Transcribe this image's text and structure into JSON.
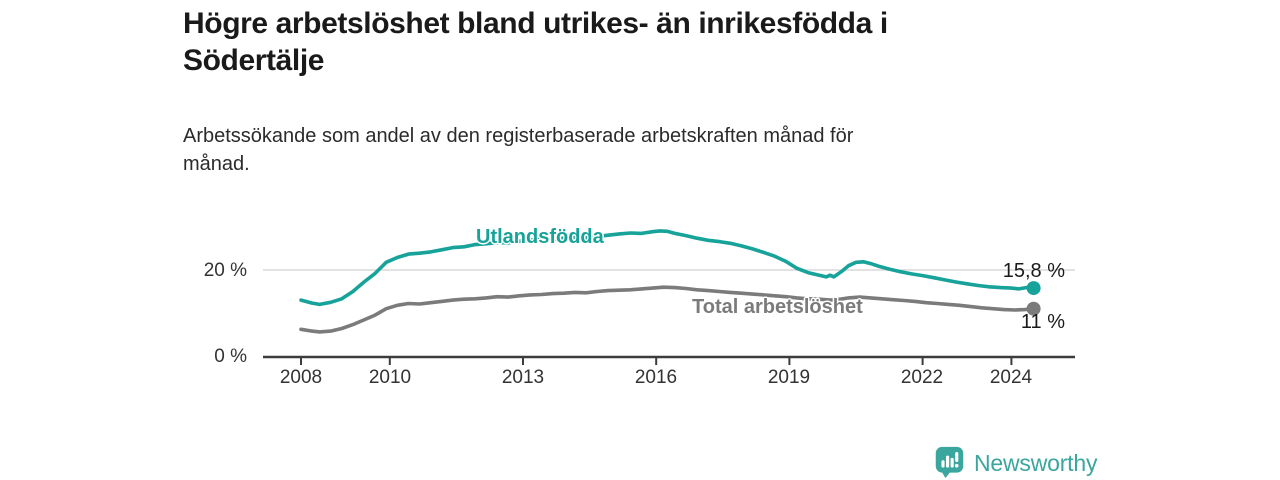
{
  "meta": {
    "background_color": "#ffffff",
    "text_color": "#1a1a1a"
  },
  "header": {
    "title_lines": [
      "Högre arbetslöshet bland utrikes- än inrikesfödda i",
      "Södertälje"
    ],
    "subtitle_lines": [
      "Arbetssökande som andel av den registerbaserade arbetskraften månad för",
      "månad."
    ]
  },
  "chart_data": {
    "type": "line",
    "title": "Högre arbetslöshet bland utrikes- än inrikesfödda i Södertälje",
    "subtitle": "Arbetssökande som andel av den registerbaserade arbetskraften månad för månad.",
    "unit": "%",
    "grid": "single horizontal gridline at 20 %",
    "legend_position": "inline labels on lines, value labels at line ends",
    "x_axis": {
      "min": 2007.15,
      "max": 2025.4
    },
    "y_axis": {
      "min": 0,
      "max": 30
    },
    "x_ticks": [
      {
        "label": "2008",
        "year": 2008
      },
      {
        "label": "2010",
        "year": 2010
      },
      {
        "label": "2013",
        "year": 2013
      },
      {
        "label": "2016",
        "year": 2016
      },
      {
        "label": "2019",
        "year": 2019
      },
      {
        "label": "2022",
        "year": 2022
      },
      {
        "label": "2024",
        "year": 2024
      }
    ],
    "y_ticks": [
      {
        "label": "20 %",
        "value": 20
      },
      {
        "label": "0 %",
        "value": 0
      }
    ],
    "series": [
      {
        "name": "Utlandsfödda",
        "color": "#17a29a",
        "end_label": "15,8 %",
        "end_value": 15.8,
        "points": [
          [
            2008.0,
            13.0
          ],
          [
            2008.25,
            12.3
          ],
          [
            2008.42,
            12.0
          ],
          [
            2008.67,
            12.5
          ],
          [
            2008.92,
            13.3
          ],
          [
            2009.17,
            15.0
          ],
          [
            2009.42,
            17.2
          ],
          [
            2009.67,
            19.2
          ],
          [
            2009.92,
            21.8
          ],
          [
            2010.17,
            22.9
          ],
          [
            2010.42,
            23.7
          ],
          [
            2010.67,
            23.9
          ],
          [
            2010.92,
            24.2
          ],
          [
            2011.17,
            24.7
          ],
          [
            2011.42,
            25.2
          ],
          [
            2011.67,
            25.4
          ],
          [
            2011.92,
            25.9
          ],
          [
            2012.17,
            26.1
          ],
          [
            2012.42,
            26.4
          ],
          [
            2012.67,
            26.3
          ],
          [
            2012.92,
            26.7
          ],
          [
            2013.17,
            27.0
          ],
          [
            2013.42,
            27.2
          ],
          [
            2013.67,
            27.1
          ],
          [
            2013.92,
            27.4
          ],
          [
            2014.17,
            27.6
          ],
          [
            2014.42,
            27.5
          ],
          [
            2014.67,
            27.8
          ],
          [
            2014.92,
            28.1
          ],
          [
            2015.17,
            28.4
          ],
          [
            2015.42,
            28.6
          ],
          [
            2015.67,
            28.5
          ],
          [
            2015.92,
            28.9
          ],
          [
            2016.08,
            29.1
          ],
          [
            2016.25,
            29.0
          ],
          [
            2016.42,
            28.5
          ],
          [
            2016.67,
            28.0
          ],
          [
            2016.92,
            27.4
          ],
          [
            2017.17,
            26.9
          ],
          [
            2017.42,
            26.6
          ],
          [
            2017.67,
            26.2
          ],
          [
            2017.92,
            25.6
          ],
          [
            2018.17,
            24.9
          ],
          [
            2018.42,
            24.1
          ],
          [
            2018.67,
            23.2
          ],
          [
            2018.92,
            22.0
          ],
          [
            2019.17,
            20.4
          ],
          [
            2019.42,
            19.4
          ],
          [
            2019.67,
            18.8
          ],
          [
            2019.83,
            18.4
          ],
          [
            2019.92,
            18.8
          ],
          [
            2020.0,
            18.4
          ],
          [
            2020.17,
            19.6
          ],
          [
            2020.33,
            21.0
          ],
          [
            2020.5,
            21.8
          ],
          [
            2020.67,
            21.9
          ],
          [
            2020.83,
            21.5
          ],
          [
            2021.0,
            20.9
          ],
          [
            2021.25,
            20.2
          ],
          [
            2021.5,
            19.6
          ],
          [
            2021.75,
            19.1
          ],
          [
            2022.0,
            18.7
          ],
          [
            2022.25,
            18.2
          ],
          [
            2022.5,
            17.7
          ],
          [
            2022.75,
            17.2
          ],
          [
            2023.0,
            16.8
          ],
          [
            2023.25,
            16.4
          ],
          [
            2023.5,
            16.1
          ],
          [
            2023.75,
            15.9
          ],
          [
            2024.0,
            15.8
          ],
          [
            2024.17,
            15.6
          ],
          [
            2024.33,
            15.9
          ],
          [
            2024.5,
            15.8
          ]
        ]
      },
      {
        "name": "Total arbetslöshet",
        "color": "#7b7b7b",
        "end_label": "11 %",
        "end_value": 11,
        "points": [
          [
            2008.0,
            6.2
          ],
          [
            2008.25,
            5.8
          ],
          [
            2008.42,
            5.6
          ],
          [
            2008.67,
            5.8
          ],
          [
            2008.92,
            6.4
          ],
          [
            2009.17,
            7.3
          ],
          [
            2009.42,
            8.4
          ],
          [
            2009.67,
            9.5
          ],
          [
            2009.92,
            11.0
          ],
          [
            2010.17,
            11.8
          ],
          [
            2010.42,
            12.2
          ],
          [
            2010.67,
            12.1
          ],
          [
            2010.92,
            12.4
          ],
          [
            2011.17,
            12.7
          ],
          [
            2011.42,
            13.0
          ],
          [
            2011.67,
            13.2
          ],
          [
            2011.92,
            13.3
          ],
          [
            2012.17,
            13.5
          ],
          [
            2012.42,
            13.8
          ],
          [
            2012.67,
            13.7
          ],
          [
            2012.92,
            14.0
          ],
          [
            2013.17,
            14.2
          ],
          [
            2013.42,
            14.3
          ],
          [
            2013.67,
            14.5
          ],
          [
            2013.92,
            14.6
          ],
          [
            2014.17,
            14.8
          ],
          [
            2014.42,
            14.7
          ],
          [
            2014.67,
            15.0
          ],
          [
            2014.92,
            15.2
          ],
          [
            2015.17,
            15.3
          ],
          [
            2015.42,
            15.4
          ],
          [
            2015.67,
            15.6
          ],
          [
            2015.92,
            15.8
          ],
          [
            2016.17,
            16.0
          ],
          [
            2016.42,
            15.9
          ],
          [
            2016.67,
            15.7
          ],
          [
            2016.92,
            15.4
          ],
          [
            2017.17,
            15.2
          ],
          [
            2017.42,
            15.0
          ],
          [
            2017.67,
            14.8
          ],
          [
            2017.92,
            14.6
          ],
          [
            2018.17,
            14.4
          ],
          [
            2018.42,
            14.2
          ],
          [
            2018.67,
            14.0
          ],
          [
            2018.92,
            13.8
          ],
          [
            2019.17,
            13.5
          ],
          [
            2019.42,
            13.3
          ],
          [
            2019.67,
            13.2
          ],
          [
            2019.92,
            13.0
          ],
          [
            2020.08,
            13.1
          ],
          [
            2020.33,
            13.5
          ],
          [
            2020.58,
            13.7
          ],
          [
            2020.83,
            13.5
          ],
          [
            2021.08,
            13.3
          ],
          [
            2021.33,
            13.1
          ],
          [
            2021.58,
            12.9
          ],
          [
            2021.83,
            12.7
          ],
          [
            2022.08,
            12.4
          ],
          [
            2022.33,
            12.2
          ],
          [
            2022.58,
            12.0
          ],
          [
            2022.83,
            11.8
          ],
          [
            2023.08,
            11.5
          ],
          [
            2023.33,
            11.2
          ],
          [
            2023.58,
            11.0
          ],
          [
            2023.83,
            10.8
          ],
          [
            2024.08,
            10.7
          ],
          [
            2024.3,
            10.8
          ],
          [
            2024.5,
            11.0
          ]
        ]
      }
    ]
  },
  "branding": {
    "logo_text": "Newsworthy",
    "logo_color": "#3aa69d",
    "icon": "newsworthy-speech-bubble-bar-chart-icon"
  }
}
